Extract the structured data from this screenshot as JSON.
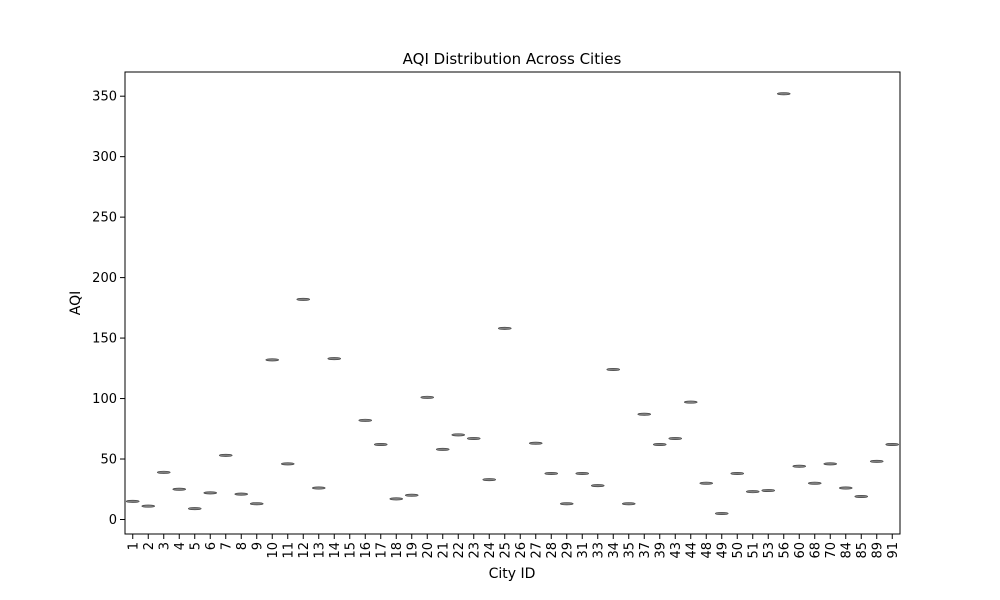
{
  "chart_data": {
    "type": "violin",
    "title": "AQI Distribution Across Cities",
    "xlabel": "City ID",
    "ylabel": "AQI",
    "ylim": [
      -12,
      370
    ],
    "yticks": [
      0,
      50,
      100,
      150,
      200,
      250,
      300,
      350
    ],
    "categories": [
      "1",
      "2",
      "3",
      "4",
      "5",
      "6",
      "7",
      "8",
      "9",
      "10",
      "11",
      "12",
      "13",
      "14",
      "15",
      "16",
      "17",
      "18",
      "19",
      "20",
      "21",
      "22",
      "23",
      "24",
      "25",
      "26",
      "27",
      "28",
      "29",
      "31",
      "33",
      "34",
      "35",
      "37",
      "39",
      "43",
      "44",
      "48",
      "49",
      "50",
      "51",
      "53",
      "56",
      "60",
      "68",
      "70",
      "84",
      "85",
      "89",
      "91"
    ],
    "values": [
      15,
      11,
      39,
      25,
      9,
      22,
      53,
      21,
      13,
      132,
      46,
      182,
      26,
      133,
      null,
      82,
      62,
      17,
      20,
      101,
      58,
      70,
      67,
      33,
      158,
      null,
      63,
      38,
      13,
      38,
      28,
      124,
      13,
      87,
      62,
      67,
      97,
      30,
      5,
      38,
      23,
      24,
      352,
      44,
      30,
      46,
      26,
      19,
      48,
      62
    ],
    "mark_color": "#808080",
    "edge_color": "#3f3f3f"
  }
}
